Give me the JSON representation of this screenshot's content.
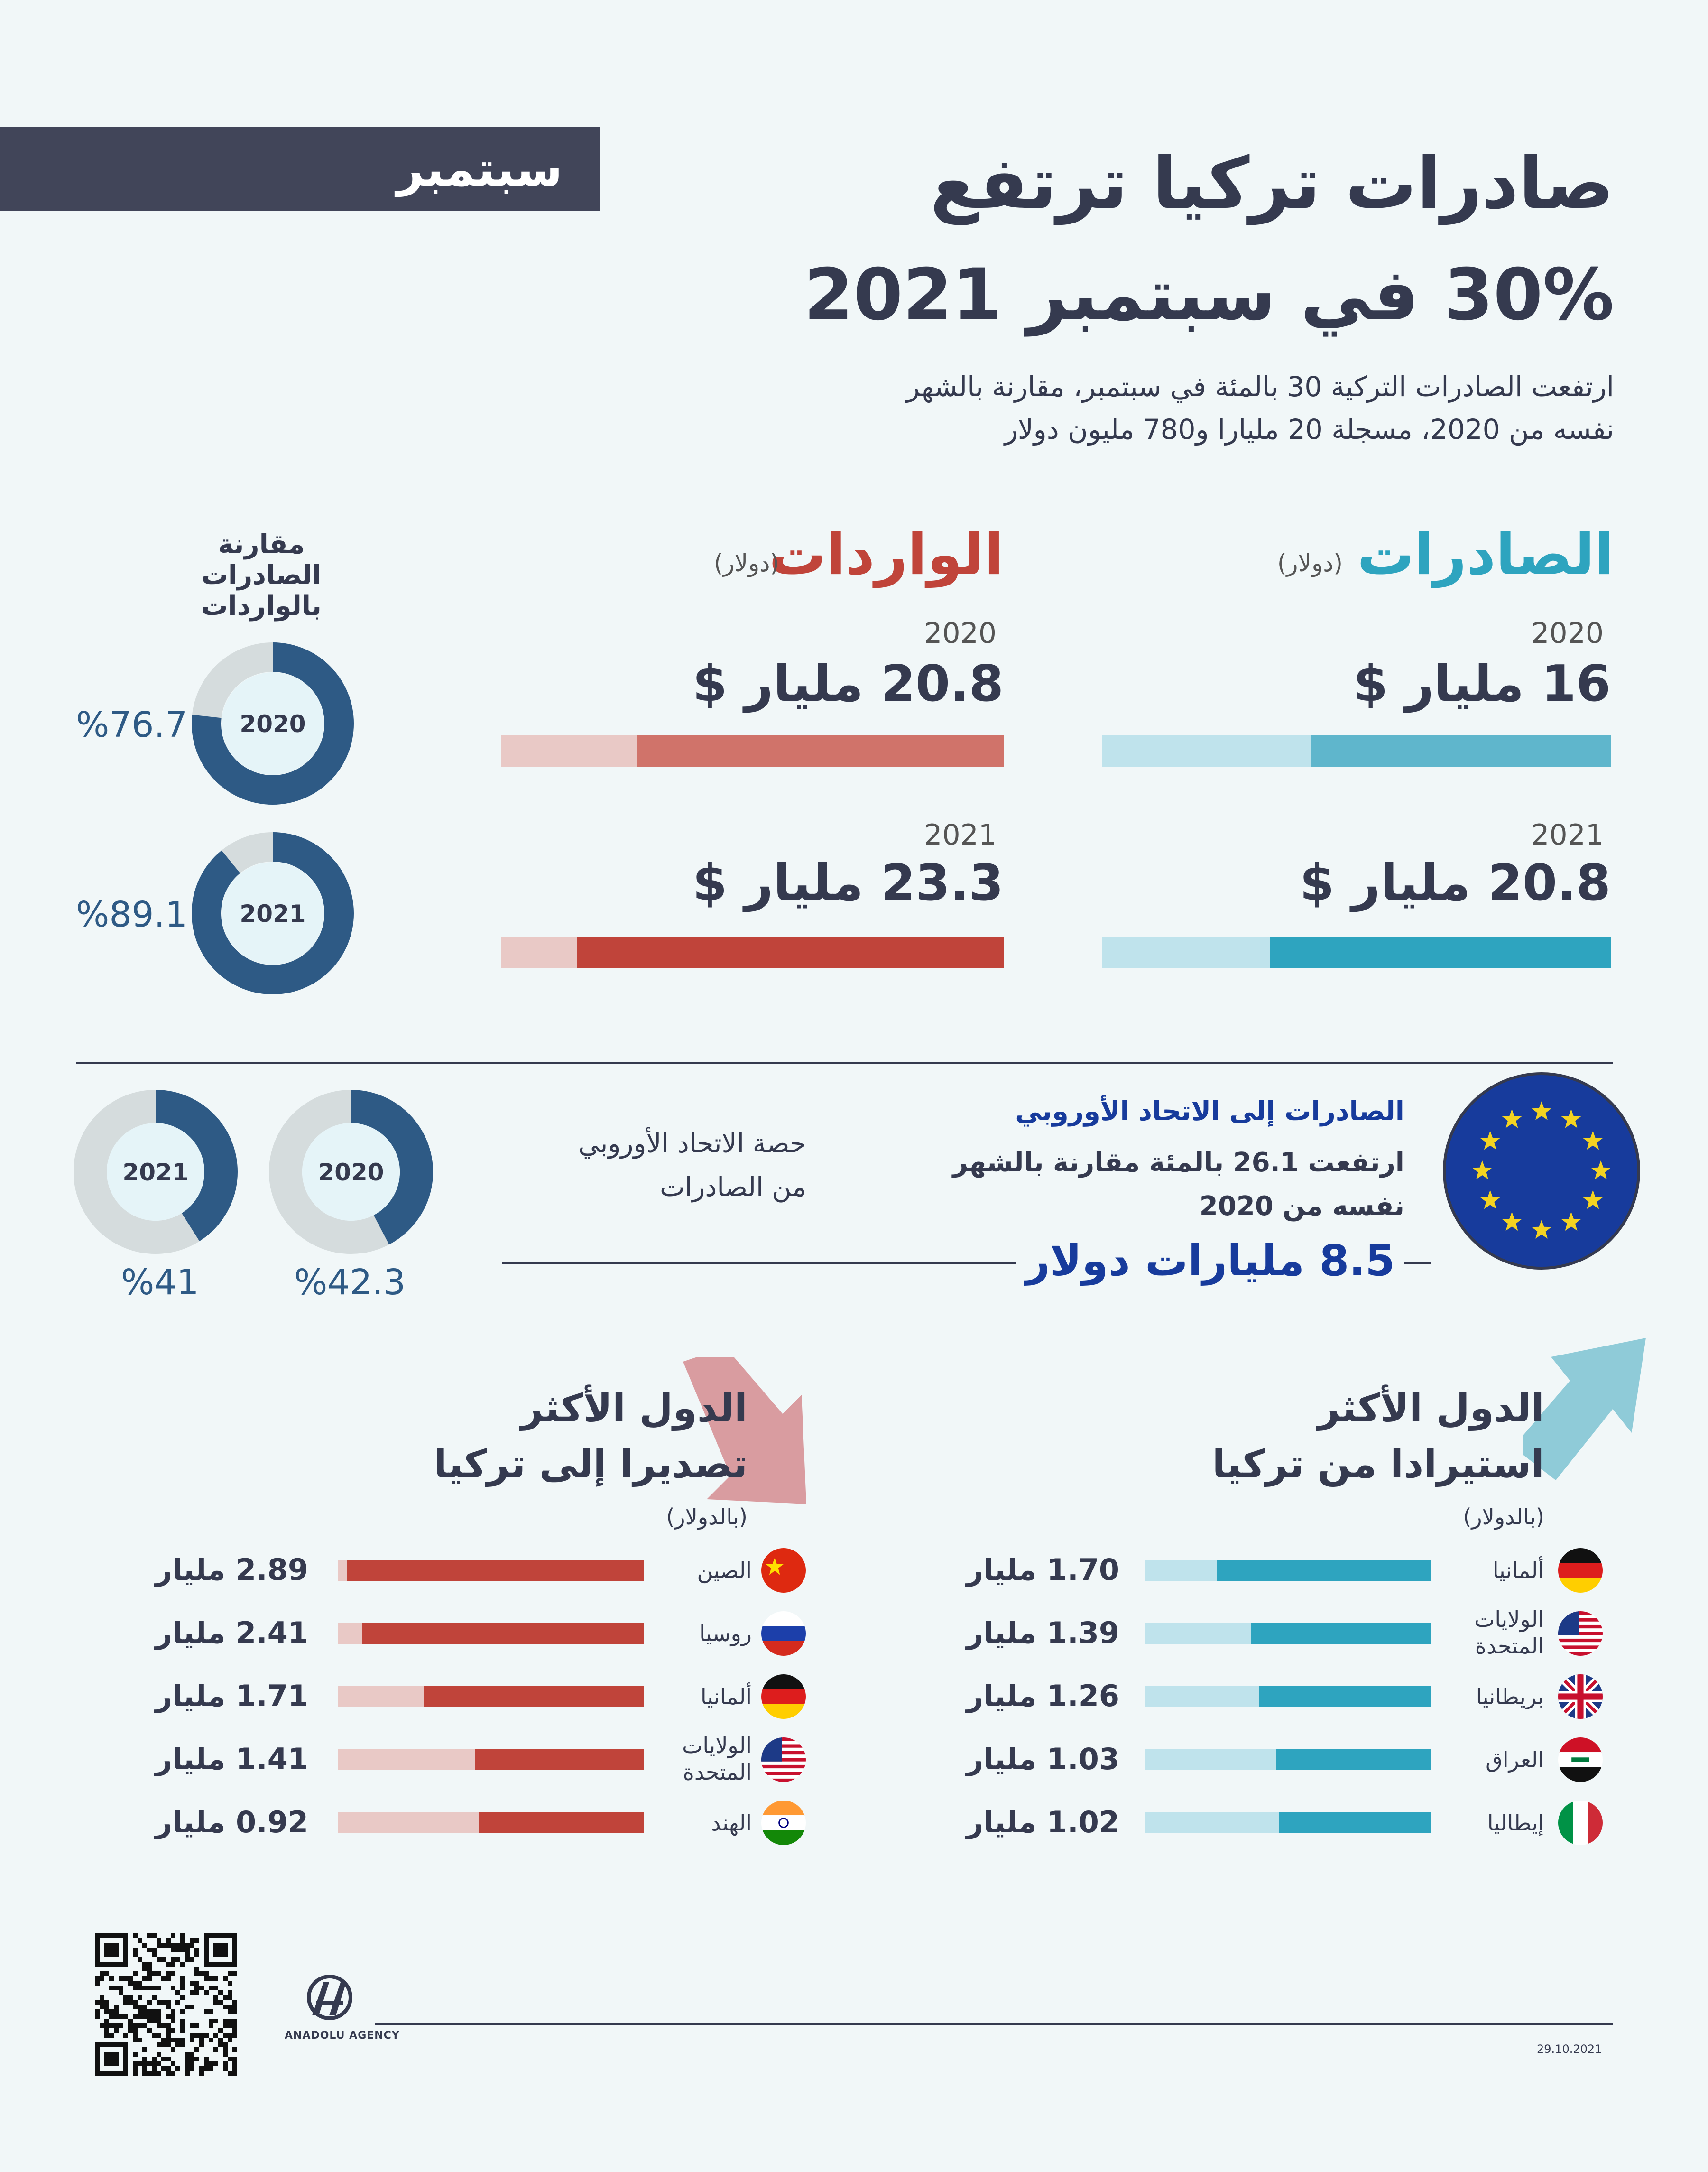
{
  "header": {
    "month_badge": "سبتمبر",
    "title_line1": "صادرات تركيا ترتفع",
    "title_line2": "30% في سبتمبر 2021",
    "subtitle_line1": "ارتفعت الصادرات التركية 30 بالمئة في سبتمبر، مقارنة بالشهر",
    "subtitle_line2": "نفسه من 2020، مسجلة 20 مليارا و780 مليون دولار"
  },
  "exports": {
    "title": "الصادرات",
    "unit": "(دولار)",
    "y2020_label": "2020",
    "y2020_amount": "16 مليار  $",
    "y2020_fill": 0.59,
    "y2021_label": "2021",
    "y2021_amount": "20.8 مليار $",
    "y2021_fill": 0.67
  },
  "imports": {
    "title": "الواردات",
    "unit": "(دولار)",
    "y2020_label": "2020",
    "y2020_amount": "20.8 مليار $",
    "y2020_fill": 0.73,
    "y2021_label": "2021",
    "y2021_amount": "23.3 مليار $",
    "y2021_fill": 0.85
  },
  "coverage": {
    "title_line1": "مقارنة",
    "title_line2": "الصادرات بالواردات",
    "d2020_label": "2020",
    "d2020_pct": "%76.7",
    "d2020_value": 76.7,
    "d2021_label": "2021",
    "d2021_pct": "%89.1",
    "d2021_value": 89.1
  },
  "eu": {
    "heading": "الصادرات إلى الاتحاد الأوروبي",
    "text_line1": "ارتفعت 26.1 بالمئة مقارنة بالشهر",
    "text_line2": "نفسه من 2020",
    "amount": "8.5 مليارات دولار",
    "share_line1": "حصة الاتحاد الأوروبي",
    "share_line2": "من الصادرات",
    "d2020_label": "2020",
    "d2020_pct": "%42.3",
    "d2020_value": 42.3,
    "d2021_label": "2021",
    "d2021_pct": "%41",
    "d2021_value": 41
  },
  "top_importers": {
    "title_line1": "الدول الأكثر",
    "title_line2": "استيرادا من تركيا",
    "unit": "(بالدولار)",
    "rows": [
      {
        "country": "ألمانيا",
        "country2": "",
        "value": "1.70 مليار",
        "fill": 0.75,
        "flag": "germany-flag-icon"
      },
      {
        "country": "الولايات",
        "country2": "المتحدة",
        "value": "1.39 مليار",
        "fill": 0.63,
        "flag": "usa-flag-icon"
      },
      {
        "country": "بريطانيا",
        "country2": "",
        "value": "1.26 مليار",
        "fill": 0.6,
        "flag": "uk-flag-icon"
      },
      {
        "country": "العراق",
        "country2": "",
        "value": "1.03 مليار",
        "fill": 0.54,
        "flag": "iraq-flag-icon"
      },
      {
        "country": "إيطاليا",
        "country2": "",
        "value": "1.02 مليار",
        "fill": 0.53,
        "flag": "italy-flag-icon"
      }
    ]
  },
  "top_exporters": {
    "title_line1": "الدول الأكثر",
    "title_line2": "تصديرا إلى تركيا",
    "unit": "(بالدولار)",
    "rows": [
      {
        "country": "الصين",
        "country2": "",
        "value": "2.89 مليار",
        "fill": 0.97,
        "flag": "china-flag-icon"
      },
      {
        "country": "روسيا",
        "country2": "",
        "value": "2.41 مليار",
        "fill": 0.92,
        "flag": "russia-flag-icon"
      },
      {
        "country": "ألمانيا",
        "country2": "",
        "value": "1.71 مليار",
        "fill": 0.72,
        "flag": "germany-flag-icon"
      },
      {
        "country": "الولايات",
        "country2": "المتحدة",
        "value": "1.41 مليار",
        "fill": 0.55,
        "flag": "usa-flag-icon"
      },
      {
        "country": "الهند",
        "country2": "",
        "value": "0.92 مليار",
        "fill": 0.54,
        "flag": "india-flag-icon"
      }
    ]
  },
  "footer": {
    "brand": "ANADOLU AGENCY",
    "date": "29.10.2021"
  },
  "colors": {
    "navy": "#353a4f",
    "teal": "#2ea4bf",
    "teal_light": "#bfe3ec",
    "export_2020": "#5fb6cc",
    "red": "#c0443a",
    "red_2020": "#d0736a",
    "red_light": "#e9c9c6",
    "donut_blue": "#2e5a85",
    "donut_grey": "#d5dcdd",
    "eu_blue": "#173b9c",
    "eu_star": "#f4d321",
    "arrow_pink": "#d99ca0",
    "arrow_teal": "#8fcbd8"
  }
}
